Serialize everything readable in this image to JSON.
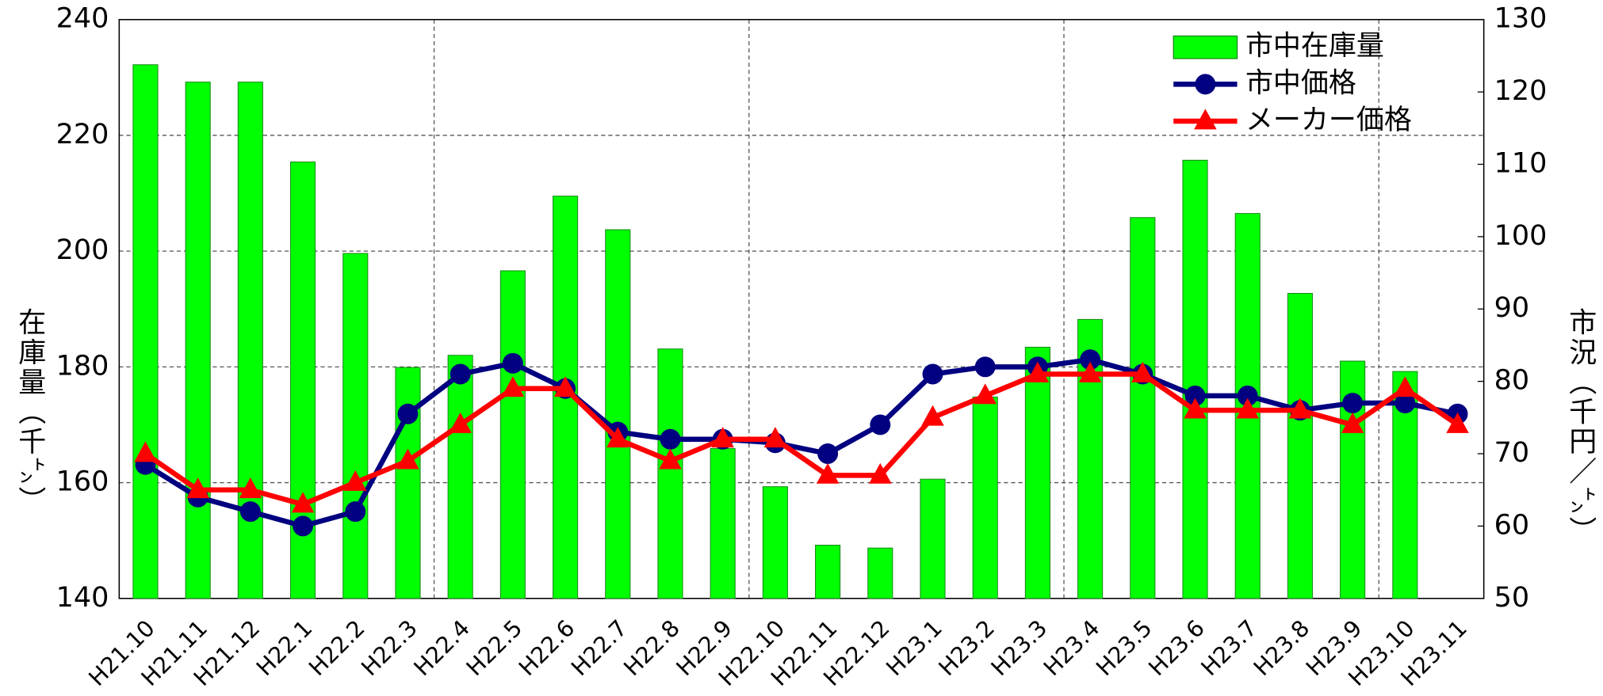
{
  "chart_data": {
    "type": "combo",
    "categories": [
      "H21.10",
      "H21.11",
      "H21.12",
      "H22.1",
      "H22.2",
      "H22.3",
      "H22.4",
      "H22.5",
      "H22.6",
      "H22.7",
      "H22.8",
      "H22.9",
      "H22.10",
      "H22.11",
      "H22.12",
      "H23.1",
      "H23.2",
      "H23.3",
      "H23.4",
      "H23.5",
      "H23.6",
      "H23.7",
      "H23.8",
      "H23.9",
      "H23.10",
      "H23.11"
    ],
    "y_label": "在庫量（千㌧）",
    "y2_label": "市況（千円／㌧）",
    "ylim": [
      140,
      240
    ],
    "yticks": [
      140,
      160,
      180,
      200,
      220,
      240
    ],
    "y2lim": [
      50,
      130
    ],
    "y2ticks": [
      50,
      60,
      70,
      80,
      90,
      100,
      110,
      120,
      130
    ],
    "grid": true,
    "legend": "upper right",
    "series": [
      {
        "name": "市中在庫量",
        "type": "bar",
        "color": "#00ff00",
        "values": [
          232.2,
          229.2,
          229.2,
          215.4,
          199.6,
          179.9,
          182.0,
          196.6,
          209.5,
          203.7,
          183.1,
          165.9,
          159.3,
          149.2,
          148.7,
          160.6,
          174.8,
          183.4,
          188.2,
          205.8,
          215.7,
          206.5,
          192.7,
          181.0,
          179.2,
          null
        ]
      },
      {
        "name": "市中価格",
        "type": "line",
        "marker": "circle",
        "axis": "y2",
        "color": "#000080",
        "values": [
          68.5,
          64,
          62,
          60,
          62,
          75.5,
          81,
          82.5,
          79,
          73,
          72,
          72,
          71.5,
          70,
          74,
          81,
          82,
          82,
          83,
          81,
          78,
          78,
          76,
          77,
          77,
          75.5
        ]
      },
      {
        "name": "メーカー価格",
        "type": "line",
        "marker": "triangle",
        "axis": "y2",
        "color": "#ff0000",
        "values": [
          70,
          65,
          65,
          63,
          66,
          69,
          74,
          79,
          79,
          72,
          69,
          72,
          72,
          67,
          67,
          75,
          78,
          81,
          81,
          81,
          76,
          76,
          76,
          74,
          79,
          74
        ]
      }
    ]
  }
}
